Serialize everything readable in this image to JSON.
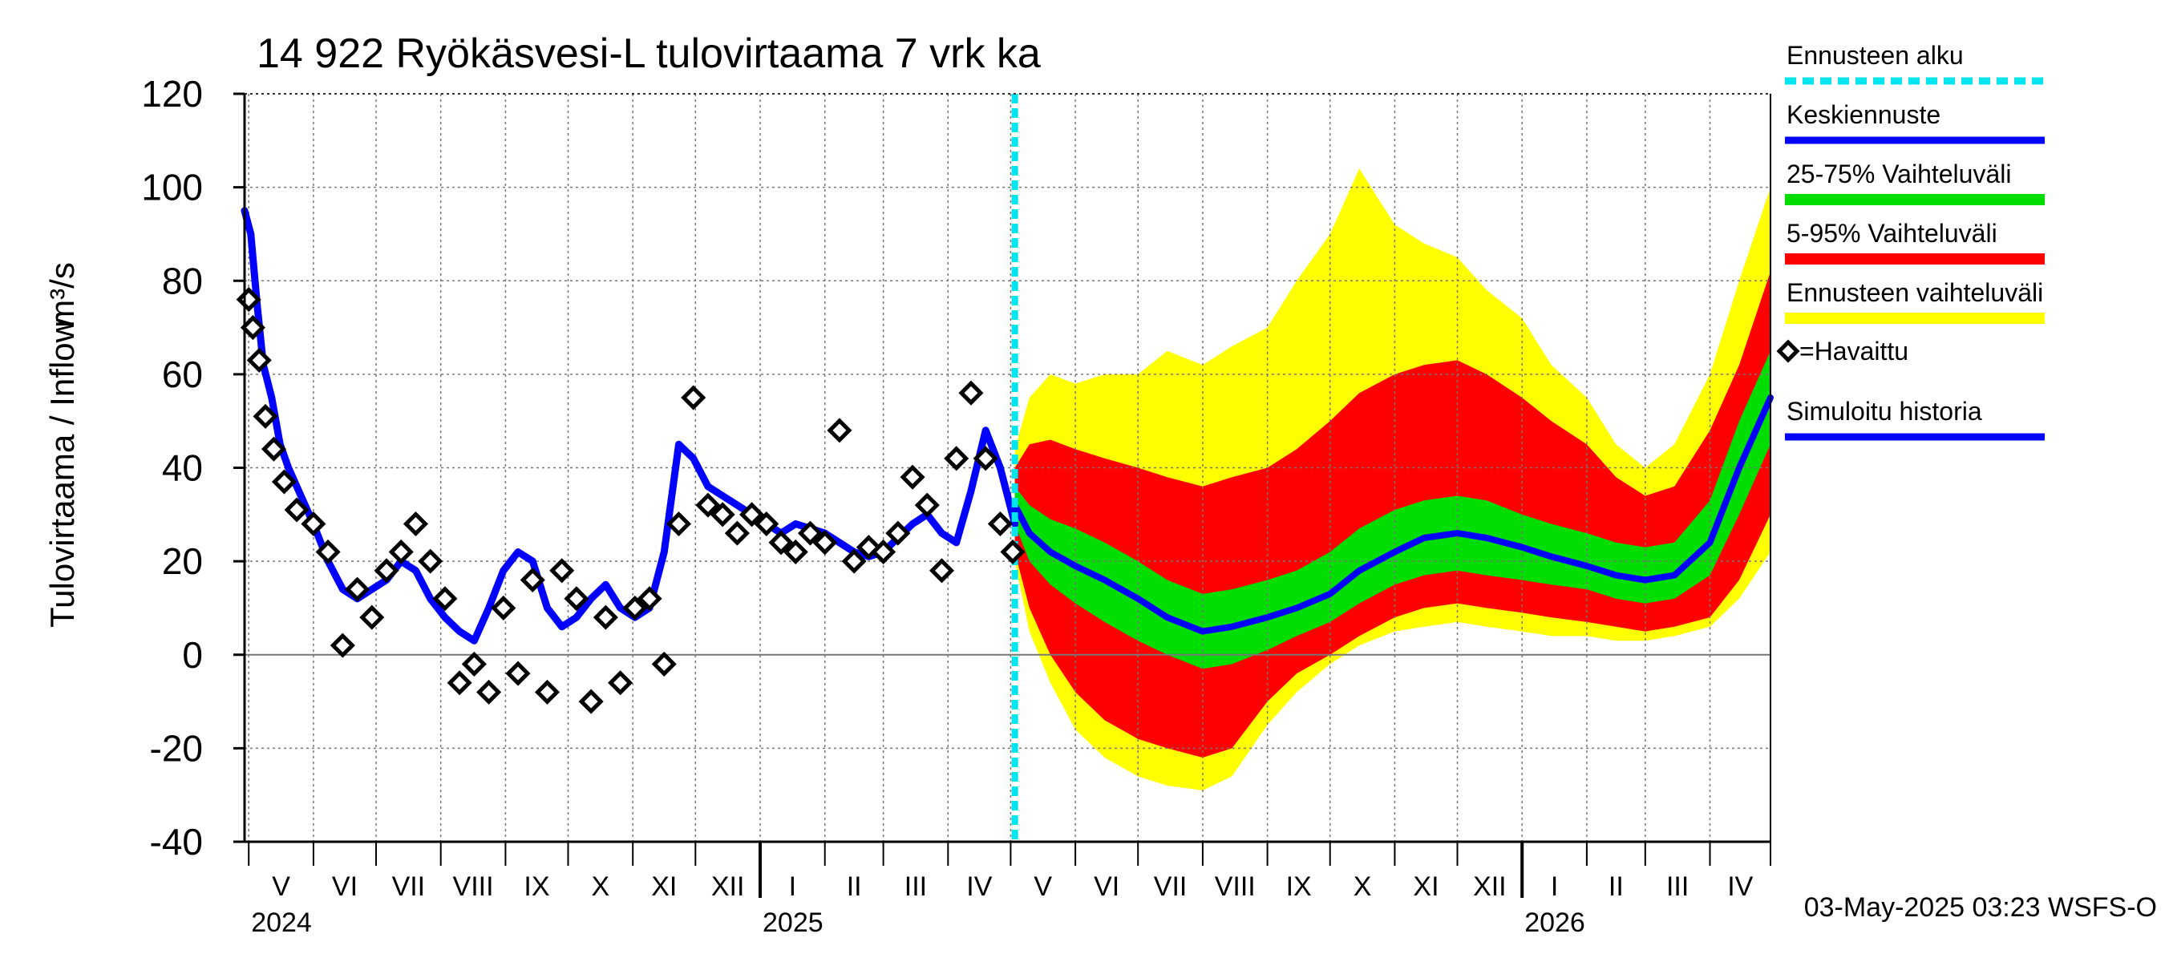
{
  "chart_data": {
    "type": "line",
    "title": "14 922 Ryökäsvesi-L tulovirtaama 7 vrk ka",
    "ylabel": "Tulovirtaama / Inflow",
    "yunit": "m³/s",
    "ylim": [
      -40,
      120
    ],
    "yticks": [
      -40,
      -20,
      0,
      20,
      40,
      60,
      80,
      100,
      120
    ],
    "xlim": [
      "2024-04-29",
      "2026-04-30"
    ],
    "grid": true,
    "forecast_start": "2025-05-03",
    "months": [
      {
        "label": "V",
        "start": "2024-05-01"
      },
      {
        "label": "VI",
        "start": "2024-06-01"
      },
      {
        "label": "VII",
        "start": "2024-07-01"
      },
      {
        "label": "VIII",
        "start": "2024-08-01"
      },
      {
        "label": "IX",
        "start": "2024-09-01"
      },
      {
        "label": "X",
        "start": "2024-10-01"
      },
      {
        "label": "XI",
        "start": "2024-11-01"
      },
      {
        "label": "XII",
        "start": "2024-12-01"
      },
      {
        "label": "I",
        "start": "2025-01-01"
      },
      {
        "label": "II",
        "start": "2025-02-01"
      },
      {
        "label": "III",
        "start": "2025-03-01"
      },
      {
        "label": "IV",
        "start": "2025-04-01"
      },
      {
        "label": "V",
        "start": "2025-05-01"
      },
      {
        "label": "VI",
        "start": "2025-06-01"
      },
      {
        "label": "VII",
        "start": "2025-07-01"
      },
      {
        "label": "VIII",
        "start": "2025-08-01"
      },
      {
        "label": "IX",
        "start": "2025-09-01"
      },
      {
        "label": "X",
        "start": "2025-10-01"
      },
      {
        "label": "XI",
        "start": "2025-11-01"
      },
      {
        "label": "XII",
        "start": "2025-12-01"
      },
      {
        "label": "I",
        "start": "2026-01-01"
      },
      {
        "label": "II",
        "start": "2026-02-01"
      },
      {
        "label": "III",
        "start": "2026-03-01"
      },
      {
        "label": "IV",
        "start": "2026-04-01"
      }
    ],
    "year_ticks": [
      "2025-01-01",
      "2026-01-01"
    ],
    "years": [
      {
        "label": "2024",
        "date": "2024-05-01"
      },
      {
        "label": "2025",
        "date": "2025-01-01"
      },
      {
        "label": "2026",
        "date": "2026-01-01"
      }
    ],
    "legend": {
      "placement": "right",
      "items": [
        {
          "label": "Ennusteen alku",
          "color": "#00e5ee",
          "style": "dashed"
        },
        {
          "label": "Keskiennuste",
          "color": "#0000ff",
          "style": "line"
        },
        {
          "label": "25-75% Vaihteluväli",
          "color": "#00dd00",
          "style": "band"
        },
        {
          "label": "5-95% Vaihteluväli",
          "color": "#ff0000",
          "style": "band"
        },
        {
          "label": "Ennusteen vaihteluväli",
          "color": "#ffff00",
          "style": "band"
        },
        {
          "label": "=Havaittu",
          "color": "#000000",
          "style": "marker"
        },
        {
          "label": "Simuloitu historia",
          "color": "#0000ff",
          "style": "line"
        }
      ]
    },
    "footer": "03-May-2025 03:23 WSFS-O",
    "colors": {
      "forecast_start": "#00e5ee",
      "median": "#0000ff",
      "band_25_75": "#00dd00",
      "band_5_95": "#ff0000",
      "band_full": "#ffff00",
      "observed": "#000000",
      "simulated": "#0000ff"
    },
    "series": [
      {
        "name": "Simuloitu historia",
        "x": [
          "2024-04-29",
          "2024-05-02",
          "2024-05-05",
          "2024-05-08",
          "2024-05-12",
          "2024-05-16",
          "2024-05-20",
          "2024-05-25",
          "2024-06-01",
          "2024-06-08",
          "2024-06-15",
          "2024-06-22",
          "2024-06-29",
          "2024-07-06",
          "2024-07-13",
          "2024-07-20",
          "2024-07-27",
          "2024-08-03",
          "2024-08-10",
          "2024-08-17",
          "2024-08-24",
          "2024-08-31",
          "2024-09-07",
          "2024-09-14",
          "2024-09-21",
          "2024-09-28",
          "2024-10-05",
          "2024-10-12",
          "2024-10-19",
          "2024-10-26",
          "2024-11-02",
          "2024-11-09",
          "2024-11-16",
          "2024-11-23",
          "2024-11-30",
          "2024-12-07",
          "2024-12-14",
          "2024-12-21",
          "2024-12-28",
          "2025-01-04",
          "2025-01-11",
          "2025-01-18",
          "2025-01-25",
          "2025-02-01",
          "2025-02-08",
          "2025-02-15",
          "2025-02-22",
          "2025-03-01",
          "2025-03-08",
          "2025-03-15",
          "2025-03-22",
          "2025-03-29",
          "2025-04-05",
          "2025-04-12",
          "2025-04-19",
          "2025-04-26",
          "2025-05-03"
        ],
        "values": [
          95,
          90,
          75,
          62,
          55,
          45,
          40,
          35,
          28,
          20,
          14,
          12,
          14,
          16,
          20,
          18,
          12,
          8,
          5,
          3,
          10,
          18,
          22,
          20,
          10,
          6,
          8,
          12,
          15,
          10,
          8,
          10,
          22,
          45,
          42,
          36,
          34,
          32,
          30,
          28,
          26,
          28,
          27,
          26,
          24,
          22,
          21,
          22,
          25,
          28,
          30,
          26,
          24,
          35,
          48,
          40,
          28
        ]
      },
      {
        "name": "Keskiennuste",
        "x": [
          "2025-05-03",
          "2025-05-10",
          "2025-05-20",
          "2025-06-01",
          "2025-06-15",
          "2025-07-01",
          "2025-07-15",
          "2025-08-01",
          "2025-08-15",
          "2025-09-01",
          "2025-09-15",
          "2025-10-01",
          "2025-10-15",
          "2025-11-01",
          "2025-11-15",
          "2025-12-01",
          "2025-12-15",
          "2026-01-01",
          "2026-01-15",
          "2026-02-01",
          "2026-02-15",
          "2026-03-01",
          "2026-03-15",
          "2026-04-01",
          "2026-04-15",
          "2026-04-30"
        ],
        "values": [
          32,
          26,
          22,
          19,
          16,
          12,
          8,
          5,
          6,
          8,
          10,
          13,
          18,
          22,
          25,
          26,
          25,
          23,
          21,
          19,
          17,
          16,
          17,
          24,
          40,
          55
        ]
      },
      {
        "name": "Havaittu",
        "x": [
          "2024-05-01",
          "2024-05-03",
          "2024-05-06",
          "2024-05-09",
          "2024-05-13",
          "2024-05-18",
          "2024-05-24",
          "2024-06-01",
          "2024-06-08",
          "2024-06-15",
          "2024-06-22",
          "2024-06-29",
          "2024-07-06",
          "2024-07-13",
          "2024-07-20",
          "2024-07-27",
          "2024-08-03",
          "2024-08-10",
          "2024-08-17",
          "2024-08-24",
          "2024-08-31",
          "2024-09-07",
          "2024-09-14",
          "2024-09-21",
          "2024-09-28",
          "2024-10-05",
          "2024-10-12",
          "2024-10-19",
          "2024-10-26",
          "2024-11-02",
          "2024-11-09",
          "2024-11-16",
          "2024-11-23",
          "2024-11-30",
          "2024-12-07",
          "2024-12-14",
          "2024-12-21",
          "2024-12-28",
          "2025-01-04",
          "2025-01-11",
          "2025-01-18",
          "2025-01-25",
          "2025-02-01",
          "2025-02-08",
          "2025-02-15",
          "2025-02-22",
          "2025-03-01",
          "2025-03-08",
          "2025-03-15",
          "2025-03-22",
          "2025-03-29",
          "2025-04-05",
          "2025-04-12",
          "2025-04-19",
          "2025-04-26",
          "2025-05-02"
        ],
        "values": [
          76,
          70,
          63,
          51,
          44,
          37,
          31,
          28,
          22,
          2,
          14,
          8,
          18,
          22,
          28,
          20,
          12,
          -6,
          -2,
          -8,
          10,
          -4,
          16,
          -8,
          18,
          12,
          -10,
          8,
          -6,
          10,
          12,
          -2,
          28,
          55,
          32,
          30,
          26,
          30,
          28,
          24,
          22,
          26,
          24,
          48,
          20,
          23,
          22,
          26,
          38,
          32,
          18,
          42,
          56,
          42,
          28,
          22
        ]
      }
    ],
    "bands": {
      "x": [
        "2025-05-03",
        "2025-05-10",
        "2025-05-20",
        "2025-06-01",
        "2025-06-15",
        "2025-07-01",
        "2025-07-15",
        "2025-08-01",
        "2025-08-15",
        "2025-09-01",
        "2025-09-15",
        "2025-10-01",
        "2025-10-15",
        "2025-11-01",
        "2025-11-15",
        "2025-12-01",
        "2025-12-15",
        "2026-01-01",
        "2026-01-15",
        "2026-02-01",
        "2026-02-15",
        "2026-03-01",
        "2026-03-15",
        "2026-04-01",
        "2026-04-15",
        "2026-04-30"
      ],
      "p25": [
        28,
        20,
        15,
        11,
        7,
        3,
        0,
        -3,
        -2,
        1,
        4,
        7,
        11,
        15,
        17,
        18,
        17,
        16,
        15,
        14,
        12,
        11,
        12,
        17,
        30,
        45
      ],
      "p75": [
        36,
        32,
        29,
        27,
        24,
        20,
        16,
        13,
        14,
        16,
        18,
        22,
        27,
        31,
        33,
        34,
        33,
        30,
        28,
        26,
        24,
        23,
        24,
        33,
        50,
        65
      ],
      "p5": [
        22,
        10,
        0,
        -8,
        -14,
        -18,
        -20,
        -22,
        -20,
        -10,
        -4,
        0,
        4,
        8,
        10,
        11,
        10,
        9,
        8,
        7,
        6,
        5,
        6,
        8,
        16,
        30
      ],
      "p95": [
        40,
        45,
        46,
        44,
        42,
        40,
        38,
        36,
        38,
        40,
        44,
        50,
        56,
        60,
        62,
        63,
        60,
        55,
        50,
        45,
        38,
        34,
        36,
        48,
        62,
        82
      ],
      "min": [
        20,
        5,
        -6,
        -16,
        -22,
        -26,
        -28,
        -29,
        -26,
        -15,
        -8,
        -2,
        2,
        5,
        6,
        7,
        6,
        5,
        4,
        4,
        3,
        3,
        4,
        6,
        12,
        22
      ],
      "max": [
        44,
        55,
        60,
        58,
        60,
        60,
        65,
        62,
        66,
        70,
        80,
        90,
        104,
        92,
        88,
        85,
        78,
        72,
        62,
        55,
        45,
        40,
        45,
        60,
        80,
        100
      ]
    }
  }
}
